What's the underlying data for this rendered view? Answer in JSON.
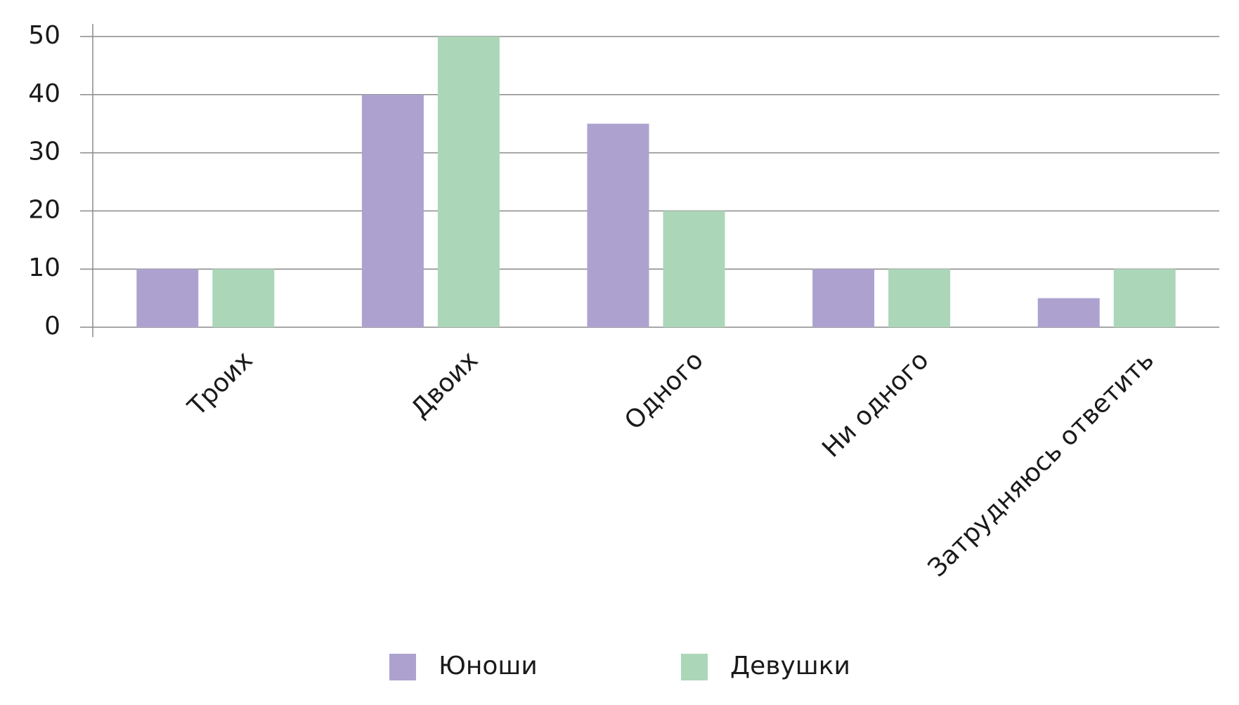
{
  "chart_data": {
    "type": "bar",
    "categories": [
      "Троих",
      "Двоих",
      "Одного",
      "Ни одного",
      "Затрудняюсь ответить"
    ],
    "series": [
      {
        "name": "Юноши",
        "color": "#ada2cf",
        "values": [
          10,
          40,
          35,
          10,
          5
        ]
      },
      {
        "name": "Девушки",
        "color": "#acd6b8",
        "values": [
          10,
          50,
          20,
          10,
          10
        ]
      }
    ],
    "ylim": [
      0,
      50
    ],
    "yticks": [
      0,
      10,
      20,
      30,
      40,
      50
    ],
    "grid": true,
    "legend": "bottom"
  }
}
